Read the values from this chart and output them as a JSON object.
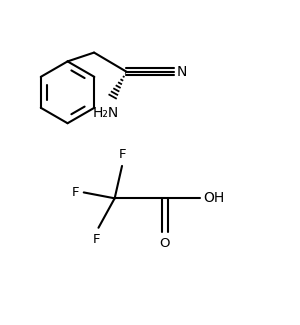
{
  "background_color": "#ffffff",
  "line_color": "#000000",
  "line_width": 1.5,
  "font_size": 9.5,
  "fig_width": 3.0,
  "fig_height": 3.25,
  "dpi": 100,
  "xlim": [
    0,
    10
  ],
  "ylim": [
    0,
    10.833
  ]
}
